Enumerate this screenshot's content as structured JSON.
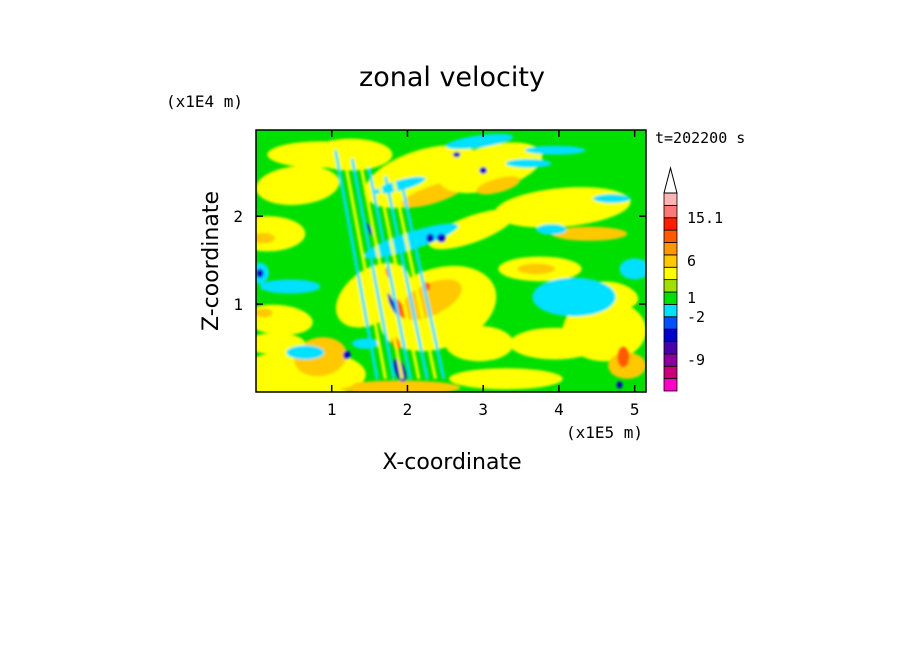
{
  "chart_data": {
    "type": "heatmap",
    "title": "zonal velocity",
    "xlabel": "X-coordinate",
    "ylabel": "Z-coordinate",
    "x_scale_label": "(x1E5 m)",
    "y_scale_label": "(x1E4 m)",
    "time_label": "t=202200 s",
    "xlim": [
      0,
      5.15
    ],
    "ylim": [
      0,
      2.98
    ],
    "x_ticks": [
      {
        "value": 1,
        "label": "1"
      },
      {
        "value": 2,
        "label": "2"
      },
      {
        "value": 3,
        "label": "3"
      },
      {
        "value": 4,
        "label": "4"
      },
      {
        "value": 5,
        "label": "5"
      }
    ],
    "y_ticks": [
      {
        "value": 1,
        "label": "1"
      },
      {
        "value": 2,
        "label": "2"
      }
    ],
    "colorbar": {
      "levels": [
        {
          "color": "#ff00c8"
        },
        {
          "color": "#c8007a"
        },
        {
          "color": "#8c009c"
        },
        {
          "color": "#4a00a8"
        },
        {
          "color": "#0000c8"
        },
        {
          "color": "#0050ff"
        },
        {
          "color": "#00e0ff"
        },
        {
          "color": "#00e000"
        },
        {
          "color": "#a0e000"
        },
        {
          "color": "#ffff00"
        },
        {
          "color": "#ffc800"
        },
        {
          "color": "#ff9600"
        },
        {
          "color": "#ff5a00"
        },
        {
          "color": "#ff1e00"
        },
        {
          "color": "#ff7878"
        },
        {
          "color": "#ffb4b4"
        }
      ],
      "extend_color": "#ffffff",
      "labels": [
        {
          "level": 2.5,
          "text": "-9"
        },
        {
          "level": 6.0,
          "text": "-2"
        },
        {
          "level": 7.5,
          "text": "1"
        },
        {
          "level": 10.5,
          "text": "6"
        },
        {
          "level": 14.0,
          "text": "15.1"
        }
      ]
    },
    "palette": {
      "background": "#00e000",
      "yellow": "#ffff00",
      "orange": "#ffc800",
      "cyan": "#00e0ff",
      "blue": "#0000c8",
      "red": "#ff5a00"
    }
  }
}
